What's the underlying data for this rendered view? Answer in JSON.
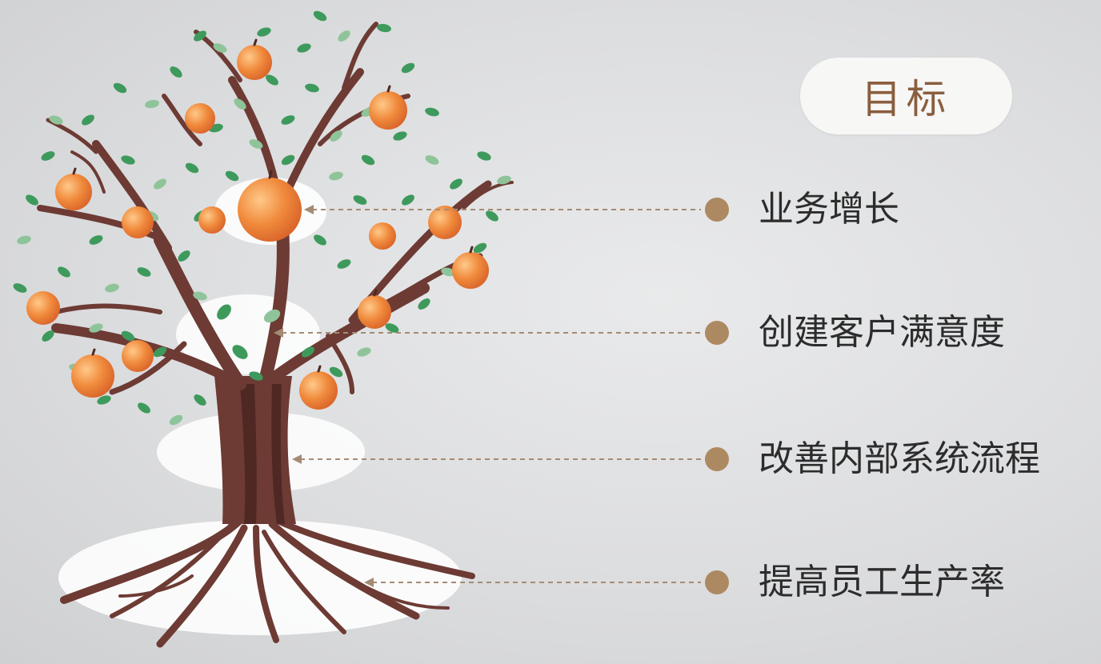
{
  "title": "目标",
  "goals": [
    {
      "label": "业务增长",
      "level": "fruit"
    },
    {
      "label": "创建客户满意度",
      "level": "branches"
    },
    {
      "label": "改善内部系统流程",
      "level": "trunk"
    },
    {
      "label": "提高员工生产率",
      "level": "roots"
    }
  ],
  "colors": {
    "trunk": "#6d3b34",
    "trunk_dark": "#4f2824",
    "leaf": "#3e9a5c",
    "leaf_light": "#8fc49a",
    "fruit": "#f08a3c",
    "fruit_highlight": "#ffc98a",
    "dot": "#ad8962",
    "title_text": "#8a5e3e",
    "highlight": "#ffffff"
  },
  "icons": {
    "tree": "fruit-tree-illustration",
    "marker": "circle-dot"
  }
}
